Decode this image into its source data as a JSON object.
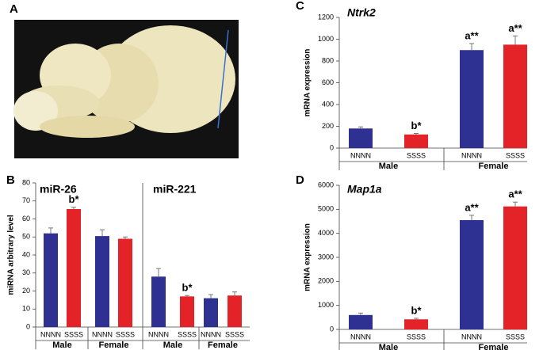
{
  "panel_labels": [
    "A",
    "B",
    "C",
    "D"
  ],
  "chart_data": [
    {
      "type": "bar",
      "title": "miR-26",
      "y_label": "miRNA arbitrary level",
      "categories": [
        "NNNN",
        "SSSS",
        "NNNN",
        "SSSS"
      ],
      "groups": [
        "Male",
        "Female"
      ],
      "values": [
        52,
        65.5,
        50.5,
        49
      ],
      "errors": [
        3,
        1,
        3.5,
        1
      ],
      "colors": [
        "#2e3192",
        "#e42328",
        "#2e3192",
        "#e42328"
      ],
      "annotations": [
        null,
        "b*",
        null,
        null
      ],
      "ylim": [
        0,
        80
      ],
      "yticks": [
        0,
        10,
        20,
        30,
        40,
        50,
        60,
        70,
        80
      ]
    },
    {
      "type": "bar",
      "title": "miR-221",
      "categories": [
        "NNNN",
        "SSSS",
        "NNNN",
        "SSSS"
      ],
      "groups": [
        "Male",
        "Female"
      ],
      "values": [
        28,
        17,
        16,
        17.5
      ],
      "errors": [
        4.5,
        0.5,
        2,
        2
      ],
      "colors": [
        "#2e3192",
        "#e42328",
        "#2e3192",
        "#e42328"
      ],
      "annotations": [
        null,
        "b*",
        null,
        null
      ],
      "ylim": [
        0,
        80
      ]
    },
    {
      "type": "bar",
      "title": "Ntrk2",
      "y_label": "mRNA expression",
      "categories": [
        "NNNN",
        "SSSS",
        "NNNN",
        "SSSS"
      ],
      "groups": [
        "Male",
        "Female"
      ],
      "values": [
        180,
        125,
        900,
        950
      ],
      "errors": [
        15,
        10,
        60,
        80
      ],
      "colors": [
        "#2e3192",
        "#e42328",
        "#2e3192",
        "#e42328"
      ],
      "annotations": [
        null,
        "b*",
        "a**",
        "a**"
      ],
      "ylim": [
        0,
        1200
      ],
      "yticks": [
        0,
        200,
        400,
        600,
        800,
        1000,
        1200
      ]
    },
    {
      "type": "bar",
      "title": "Map1a",
      "y_label": "mRNA expression",
      "categories": [
        "NNNN",
        "SSSS",
        "NNNN",
        "SSSS"
      ],
      "groups": [
        "Male",
        "Female"
      ],
      "values": [
        600,
        420,
        4550,
        5120
      ],
      "errors": [
        80,
        40,
        200,
        180
      ],
      "colors": [
        "#2e3192",
        "#e42328",
        "#2e3192",
        "#e42328"
      ],
      "annotations": [
        null,
        "b*",
        "a**",
        "a**"
      ],
      "ylim": [
        0,
        6000
      ],
      "yticks": [
        0,
        1000,
        2000,
        3000,
        4000,
        5000,
        6000
      ]
    }
  ]
}
